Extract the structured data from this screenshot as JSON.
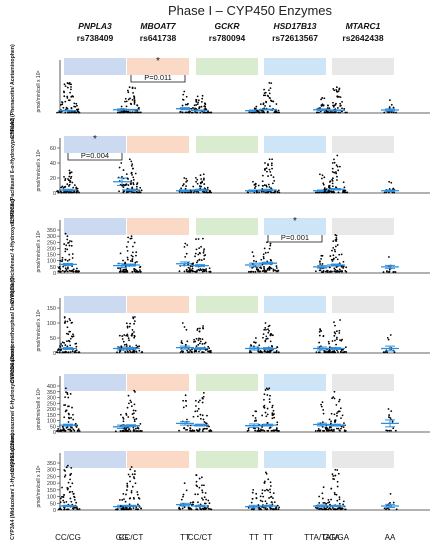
{
  "title": "Phase I – CYP450 Enzymes",
  "genes": [
    {
      "name": "PNPLA3",
      "rsid": "rs738409",
      "color": "#c5d5f0",
      "genotypes": [
        "CC/CG",
        "GG"
      ]
    },
    {
      "name": "MBOAT7",
      "rsid": "rs641738",
      "color": "#f9d5c0",
      "genotypes": [
        "CC/CT",
        "TT"
      ]
    },
    {
      "name": "GCKR",
      "rsid": "rs780094",
      "color": "#d6eacb",
      "genotypes": [
        "CC/CT",
        "TT"
      ]
    },
    {
      "name": "HSD17B13",
      "rsid": "rs72613567",
      "color": "#c9e2f6",
      "genotypes": [
        "TT",
        "TTA/TATA"
      ]
    },
    {
      "name": "MTARC1",
      "rsid": "rs2642438",
      "color": "#e6e6e6",
      "genotypes": [
        "GG/GA",
        "AA"
      ]
    }
  ],
  "colors": {
    "dot": "#000000",
    "mean_bar": "#2b8fe0",
    "axis": "#333333"
  },
  "chart_data": [
    {
      "type": "scatter",
      "ylabel": "CYP1A2 (Phenacetin/ Acetaminophen) pmol/min/cell x 10⁶",
      "ylim": [
        0,
        1000
      ],
      "yticks": [],
      "means": [
        55,
        75,
        75,
        100,
        58,
        55,
        80,
        75,
        62,
        70
      ],
      "sems": [
        10,
        20,
        10,
        25,
        10,
        15,
        10,
        20,
        10,
        25
      ],
      "maxima": [
        700,
        150,
        600,
        500,
        400,
        150,
        700,
        350,
        600,
        300
      ],
      "counts": [
        70,
        14,
        62,
        20,
        58,
        16,
        60,
        22,
        60,
        14
      ],
      "annotations": [
        {
          "gene": "MBOAT7",
          "text": "P=0.011",
          "star": "*"
        }
      ]
    },
    {
      "type": "scatter",
      "ylabel": "CYP2C8 (Paclitaxel/ 6-α-Hydroxypaclitaxel) pmol/min/cell x 10⁶",
      "ylim": [
        0,
        60
      ],
      "yticks": [
        0,
        20,
        40,
        60
      ],
      "means": [
        4,
        15,
        4,
        3,
        4,
        3,
        4,
        3,
        5,
        3
      ],
      "sems": [
        1,
        5,
        1,
        1,
        1,
        1,
        1,
        1,
        1,
        1
      ],
      "maxima": [
        30,
        40,
        45,
        20,
        25,
        15,
        45,
        25,
        50,
        15
      ],
      "counts": [
        70,
        14,
        62,
        20,
        58,
        16,
        60,
        22,
        60,
        14
      ],
      "annotations": [
        {
          "gene": "PNPLA3",
          "text": "P=0.004",
          "star": "*"
        }
      ]
    },
    {
      "type": "scatter",
      "ylabel": "CYP2C9 (Diclofenac/ 4-Hydroxydiclofenac) pmol/min/cell x 10⁶",
      "ylim": [
        0,
        350
      ],
      "yticks": [
        0,
        50,
        100,
        150,
        200,
        250,
        300,
        350
      ],
      "means": [
        70,
        60,
        65,
        75,
        60,
        65,
        80,
        50,
        65,
        50
      ],
      "sems": [
        8,
        15,
        8,
        15,
        8,
        15,
        8,
        10,
        8,
        12
      ],
      "maxima": [
        320,
        160,
        300,
        240,
        280,
        170,
        250,
        140,
        310,
        130
      ],
      "counts": [
        70,
        14,
        62,
        20,
        58,
        16,
        60,
        22,
        60,
        14
      ],
      "annotations": [
        {
          "gene": "HSD17B13",
          "text": "P=0.001",
          "star": "*"
        }
      ]
    },
    {
      "type": "scatter",
      "ylabel": "CYP2D6 (Dextromethorphan/ Dextrorphan) pmol/min/cell x 10⁶",
      "ylim": [
        0,
        150
      ],
      "yticks": [
        0,
        50,
        100,
        150
      ],
      "means": [
        15,
        15,
        15,
        18,
        15,
        15,
        15,
        15,
        15,
        15
      ],
      "sems": [
        3,
        5,
        3,
        5,
        3,
        5,
        3,
        5,
        3,
        8
      ],
      "maxima": [
        120,
        60,
        120,
        100,
        90,
        50,
        100,
        80,
        110,
        60
      ],
      "counts": [
        70,
        14,
        62,
        20,
        58,
        16,
        60,
        22,
        60,
        14
      ],
      "annotations": []
    },
    {
      "type": "scatter",
      "ylabel": "CYP2E1 (Chlorzoxazone/ 6-Hydroxychlorzoxazone) pmol/min/cell x 10⁶",
      "ylim": [
        0,
        400
      ],
      "yticks": [
        0,
        50,
        100,
        150,
        200,
        250,
        300,
        350,
        400
      ],
      "means": [
        60,
        45,
        55,
        75,
        60,
        55,
        60,
        65,
        60,
        75
      ],
      "sems": [
        8,
        15,
        8,
        15,
        8,
        15,
        8,
        12,
        8,
        30
      ],
      "maxima": [
        380,
        150,
        360,
        320,
        340,
        180,
        380,
        260,
        350,
        200
      ],
      "counts": [
        70,
        14,
        62,
        20,
        58,
        16,
        60,
        22,
        60,
        14
      ],
      "annotations": []
    },
    {
      "type": "scatter",
      "ylabel": "CYP3A4 (Midazolam/ 1-Hydroxymidazolam) pmol/min/cell x 10⁶",
      "ylim": [
        0,
        350
      ],
      "yticks": [
        0,
        50,
        100,
        150,
        200,
        250,
        300,
        350
      ],
      "means": [
        30,
        25,
        30,
        40,
        30,
        25,
        30,
        30,
        30,
        30
      ],
      "sems": [
        5,
        10,
        5,
        10,
        5,
        10,
        5,
        8,
        5,
        12
      ],
      "maxima": [
        330,
        120,
        320,
        200,
        260,
        150,
        280,
        170,
        300,
        120
      ],
      "counts": [
        70,
        14,
        62,
        20,
        58,
        16,
        60,
        22,
        60,
        14
      ],
      "annotations": []
    }
  ]
}
